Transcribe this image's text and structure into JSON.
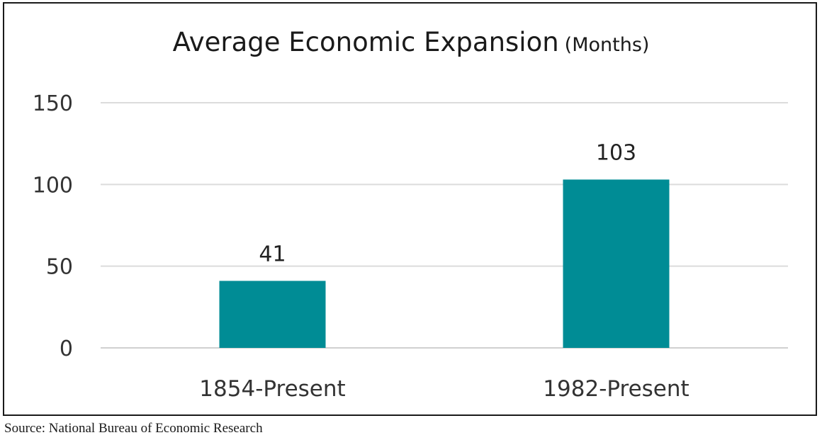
{
  "chart_data": {
    "type": "bar",
    "title": "Average Economic Expansion",
    "subtitle": "(Months)",
    "categories": [
      "1854-Present",
      "1982-Present"
    ],
    "values": [
      41,
      103
    ],
    "ylim": [
      0,
      150
    ],
    "yticks": [
      0,
      50,
      100,
      150
    ],
    "grid": true,
    "bar_color": "#008c95",
    "data_labels": true
  },
  "source": "Source: National Bureau of Economic Research"
}
